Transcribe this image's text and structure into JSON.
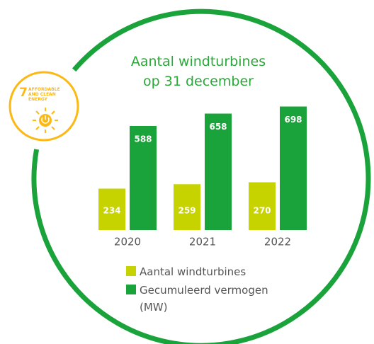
{
  "badge": {
    "number": 7,
    "text": "AFFORDABLE AND CLEAN ENERGY"
  },
  "chart_data": {
    "type": "bar",
    "title": "Aantal windturbines op 31 december",
    "categories": [
      "2020",
      "2021",
      "2022"
    ],
    "series": [
      {
        "name": "Aantal windturbines",
        "color": "#c6d300",
        "values": [
          234,
          259,
          270
        ]
      },
      {
        "name": "Gecumuleerd vermogen (MW)",
        "color": "#1ba33b",
        "values": [
          588,
          658,
          698
        ]
      }
    ]
  }
}
